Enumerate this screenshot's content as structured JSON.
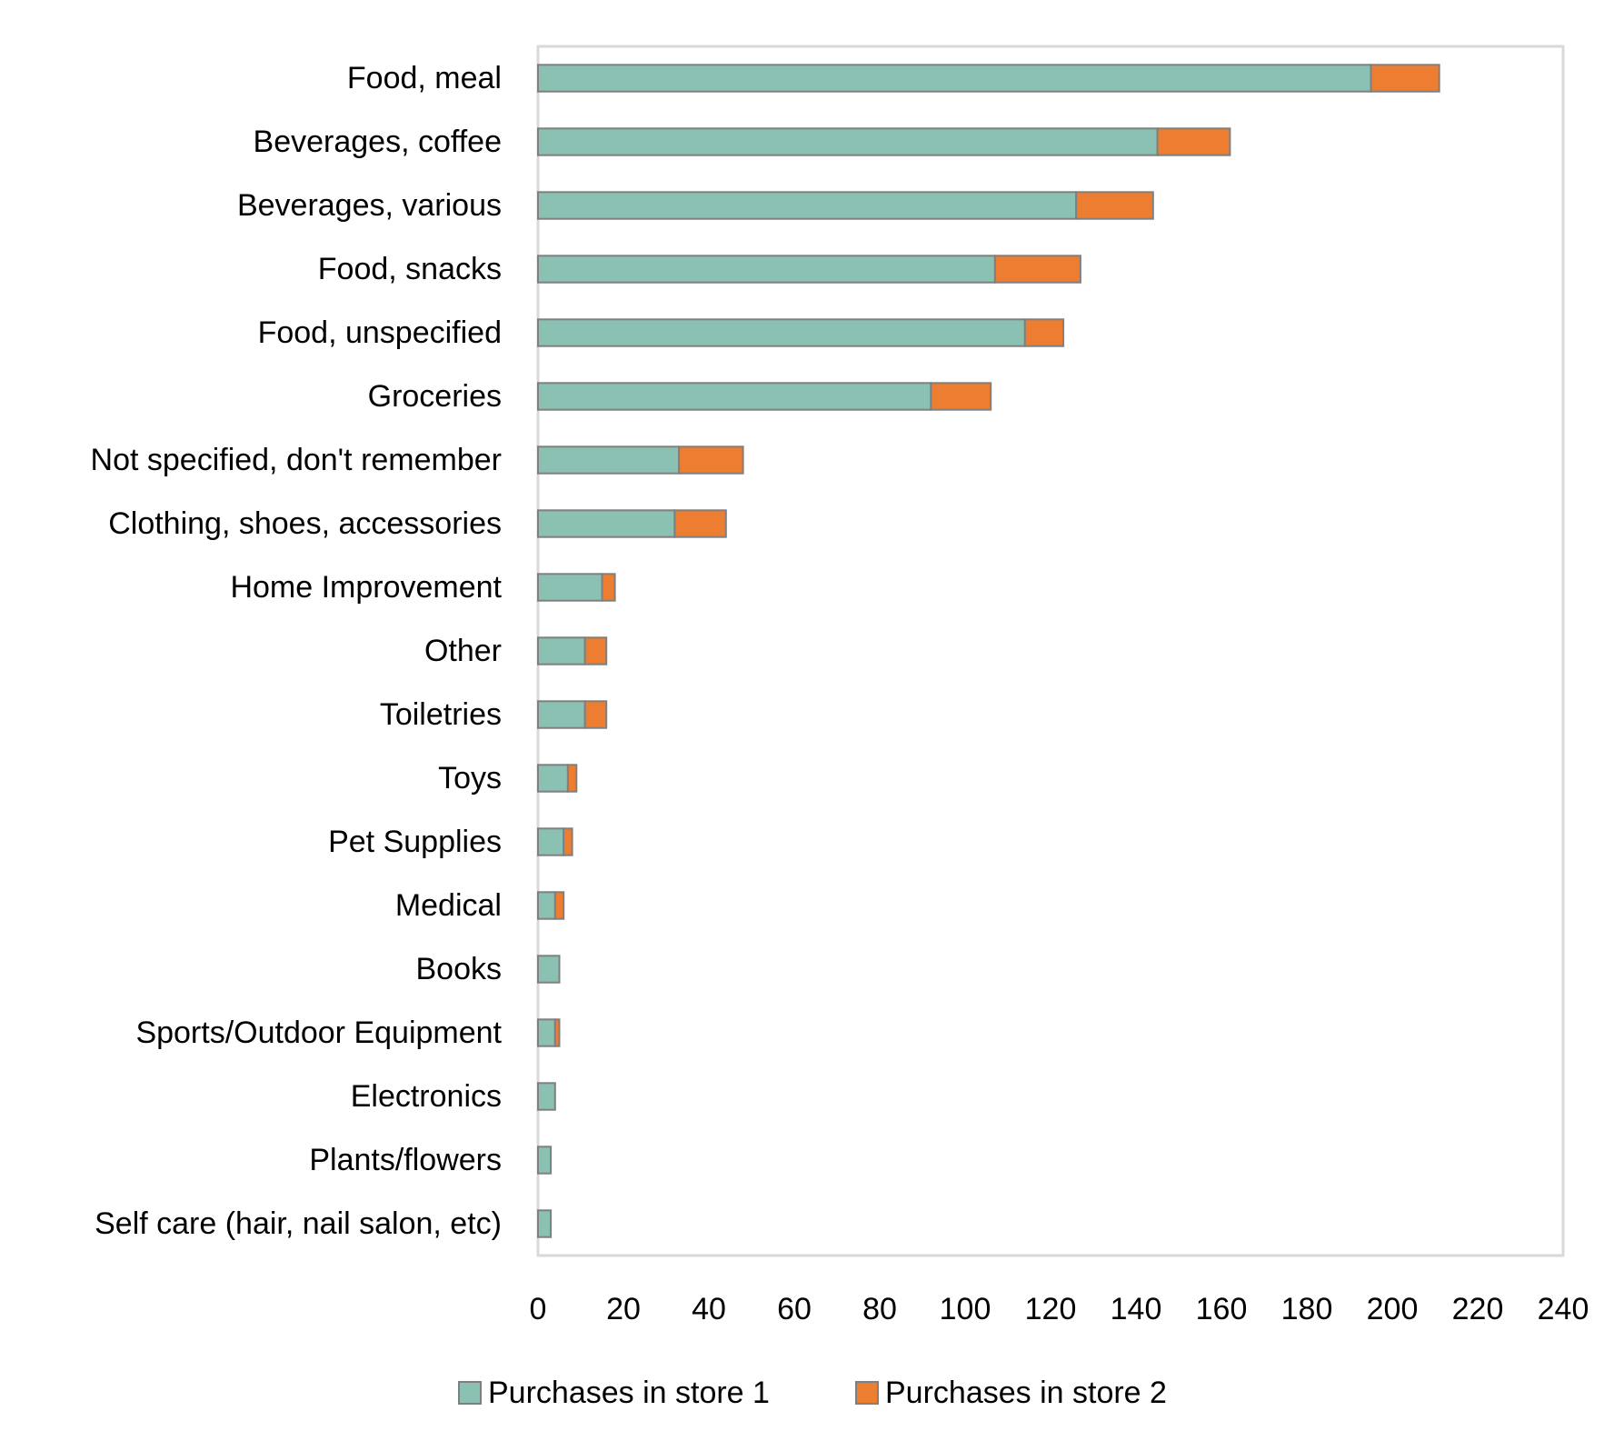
{
  "chart_data": {
    "type": "bar",
    "orientation": "horizontal",
    "stacked": true,
    "categories": [
      "Food, meal",
      "Beverages, coffee",
      "Beverages, various",
      "Food, snacks",
      "Food, unspecified",
      "Groceries",
      "Not specified, don't remember",
      "Clothing, shoes, accessories",
      "Home Improvement",
      "Other",
      "Toiletries",
      "Toys",
      "Pet Supplies",
      "Medical",
      "Books",
      "Sports/Outdoor Equipment",
      "Electronics",
      "Plants/flowers",
      "Self care (hair, nail salon, etc)"
    ],
    "series": [
      {
        "name": "Purchases in store 1",
        "color": "#8BC1B2",
        "values": [
          195,
          145,
          126,
          107,
          114,
          92,
          33,
          32,
          15,
          11,
          11,
          7,
          6,
          4,
          5,
          4,
          4,
          3,
          3
        ]
      },
      {
        "name": "Purchases in store 2",
        "color": "#ED7D31",
        "values": [
          16,
          17,
          18,
          20,
          9,
          14,
          15,
          12,
          3,
          5,
          5,
          2,
          2,
          2,
          0,
          1,
          0,
          0,
          0
        ]
      }
    ],
    "xlim": [
      0,
      240
    ],
    "xticks": [
      0,
      20,
      40,
      60,
      80,
      100,
      120,
      140,
      160,
      180,
      200,
      220,
      240
    ],
    "grid": false,
    "legend_position": "bottom"
  }
}
